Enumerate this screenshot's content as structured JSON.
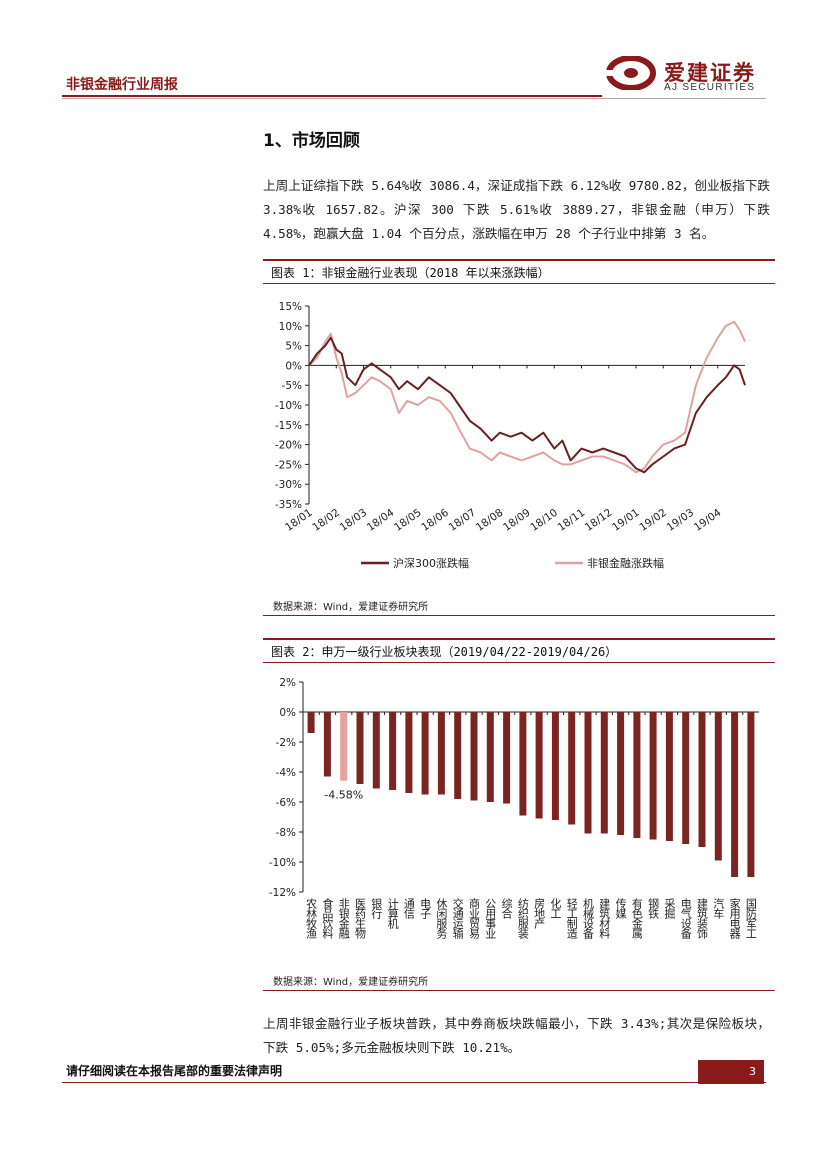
{
  "header": {
    "report_title": "非银金融行业周报",
    "brand_cn": "爱建证券",
    "brand_en": "AJ SECURITIES"
  },
  "section": {
    "title": "1、市场回顾",
    "paragraph1": "上周上证综指下跌 5.64%收 3086.4，深证成指下跌 6.12%收 9780.82，创业板指下跌 3.38%收 1657.82。沪深 300 下跌 5.61%收 3889.27，非银金融（申万）下跌 4.58%，跑赢大盘 1.04 个百分点，涨跌幅在申万 28 个子行业中排第 3 名。",
    "paragraph2": "上周非银金融行业子板块普跌，其中券商板块跌幅最小，下跌 3.43%;其次是保险板块， 下跌 5.05%;多元金融板块则下跌 10.21%。"
  },
  "figure1": {
    "title": "图表 1：非银金融行业表现（2018 年以来涨跌幅）",
    "source": "数据来源：Wind，爱建证券研究所"
  },
  "figure2": {
    "title": "图表 2：申万一级行业板块表现（2019/04/22-2019/04/26）",
    "source": "数据来源：Wind，爱建证券研究所"
  },
  "footer": {
    "disclaimer": "请仔细阅读在本报告尾部的重要法律声明",
    "page_number": "3"
  },
  "colors": {
    "brand": "#8B1A1A",
    "series_hs300": "#6B1F1F",
    "series_nonbank": "#E2A1A1",
    "bar_default": "#7B2424",
    "bar_highlight": "#E8A0A0"
  },
  "chart_data": [
    {
      "type": "line",
      "title": "图表 1：非银金融行业表现（2018 年以来涨跌幅）",
      "x_tick_labels": [
        "18/01",
        "18/02",
        "18/03",
        "18/04",
        "18/05",
        "18/06",
        "18/07",
        "18/08",
        "18/09",
        "18/10",
        "18/11",
        "18/12",
        "19/01",
        "19/02",
        "19/03",
        "19/04"
      ],
      "y_tick_labels": [
        "15%",
        "10%",
        "5%",
        "0%",
        "-5%",
        "-10%",
        "-15%",
        "-20%",
        "-25%",
        "-30%",
        "-35%"
      ],
      "ylim": [
        -35,
        15
      ],
      "x_unit": "month index (0 = 18/01)",
      "series": [
        {
          "name": "沪深300涨跌幅",
          "points": [
            [
              0,
              0
            ],
            [
              0.3,
              3
            ],
            [
              0.6,
              5
            ],
            [
              0.8,
              7
            ],
            [
              1.0,
              4
            ],
            [
              1.2,
              3
            ],
            [
              1.4,
              -3
            ],
            [
              1.7,
              -5
            ],
            [
              2.0,
              -1
            ],
            [
              2.3,
              0.5
            ],
            [
              2.6,
              -1
            ],
            [
              3.0,
              -3
            ],
            [
              3.3,
              -6
            ],
            [
              3.6,
              -4
            ],
            [
              4.0,
              -6
            ],
            [
              4.4,
              -3
            ],
            [
              4.8,
              -5
            ],
            [
              5.2,
              -7
            ],
            [
              5.5,
              -10
            ],
            [
              5.9,
              -14
            ],
            [
              6.3,
              -16
            ],
            [
              6.7,
              -19
            ],
            [
              7.0,
              -17
            ],
            [
              7.4,
              -18
            ],
            [
              7.8,
              -17
            ],
            [
              8.2,
              -19
            ],
            [
              8.6,
              -17
            ],
            [
              9.0,
              -21
            ],
            [
              9.3,
              -19
            ],
            [
              9.6,
              -24
            ],
            [
              10.0,
              -21
            ],
            [
              10.4,
              -22
            ],
            [
              10.8,
              -21
            ],
            [
              11.2,
              -22
            ],
            [
              11.6,
              -23
            ],
            [
              12.0,
              -26
            ],
            [
              12.3,
              -27
            ],
            [
              12.6,
              -25
            ],
            [
              13.0,
              -23
            ],
            [
              13.4,
              -21
            ],
            [
              13.8,
              -20
            ],
            [
              14.2,
              -12
            ],
            [
              14.6,
              -8
            ],
            [
              15.0,
              -5
            ],
            [
              15.3,
              -3
            ],
            [
              15.6,
              0
            ],
            [
              15.8,
              -1
            ],
            [
              16.0,
              -5
            ]
          ]
        },
        {
          "name": "非银金融涨跌幅",
          "points": [
            [
              0,
              0
            ],
            [
              0.3,
              2
            ],
            [
              0.6,
              6
            ],
            [
              0.8,
              8
            ],
            [
              1.0,
              2
            ],
            [
              1.2,
              -2
            ],
            [
              1.4,
              -8
            ],
            [
              1.7,
              -7
            ],
            [
              2.0,
              -5
            ],
            [
              2.3,
              -3
            ],
            [
              2.6,
              -4
            ],
            [
              3.0,
              -6
            ],
            [
              3.3,
              -12
            ],
            [
              3.6,
              -9
            ],
            [
              4.0,
              -10
            ],
            [
              4.4,
              -8
            ],
            [
              4.8,
              -9
            ],
            [
              5.2,
              -12
            ],
            [
              5.5,
              -16
            ],
            [
              5.9,
              -21
            ],
            [
              6.3,
              -22
            ],
            [
              6.7,
              -24
            ],
            [
              7.0,
              -22
            ],
            [
              7.4,
              -23
            ],
            [
              7.8,
              -24
            ],
            [
              8.2,
              -23
            ],
            [
              8.6,
              -22
            ],
            [
              9.0,
              -24
            ],
            [
              9.3,
              -25
            ],
            [
              9.6,
              -25
            ],
            [
              10.0,
              -24
            ],
            [
              10.4,
              -23
            ],
            [
              10.8,
              -23
            ],
            [
              11.2,
              -24
            ],
            [
              11.6,
              -25
            ],
            [
              12.0,
              -27
            ],
            [
              12.3,
              -26
            ],
            [
              12.6,
              -23
            ],
            [
              13.0,
              -20
            ],
            [
              13.4,
              -19
            ],
            [
              13.8,
              -17
            ],
            [
              14.2,
              -5
            ],
            [
              14.6,
              2
            ],
            [
              15.0,
              7
            ],
            [
              15.3,
              10
            ],
            [
              15.6,
              11
            ],
            [
              15.8,
              9
            ],
            [
              16.0,
              6
            ]
          ]
        }
      ]
    },
    {
      "type": "bar",
      "title": "图表 2：申万一级行业板块表现（2019/04/22-2019/04/26）",
      "categories": [
        "农林牧渔",
        "食品饮料",
        "非银金融",
        "医药生物",
        "银行",
        "计算机",
        "通信",
        "电子",
        "休闲服务",
        "交通运输",
        "商业贸易",
        "公用事业",
        "综合",
        "纺织服装",
        "房地产",
        "化工",
        "轻工制造",
        "机械设备",
        "建筑材料",
        "传媒",
        "有色金属",
        "钢铁",
        "采掘",
        "电气设备",
        "建筑装饰",
        "汽车",
        "家用电器",
        "国防军工"
      ],
      "values": [
        -1.4,
        -4.3,
        -4.58,
        -4.8,
        -5.1,
        -5.2,
        -5.4,
        -5.5,
        -5.5,
        -5.8,
        -5.9,
        -6.0,
        -6.1,
        -6.9,
        -7.1,
        -7.2,
        -7.5,
        -8.1,
        -8.1,
        -8.2,
        -8.4,
        -8.5,
        -8.6,
        -8.8,
        -9.0,
        -9.9,
        -11.0,
        -11.0
      ],
      "highlight": "非银金融",
      "annotation": "-4.58%",
      "y_tick_labels": [
        "2%",
        "0%",
        "-2%",
        "-4%",
        "-6%",
        "-8%",
        "-10%",
        "-12%"
      ],
      "ylim": [
        -12,
        2
      ]
    }
  ]
}
